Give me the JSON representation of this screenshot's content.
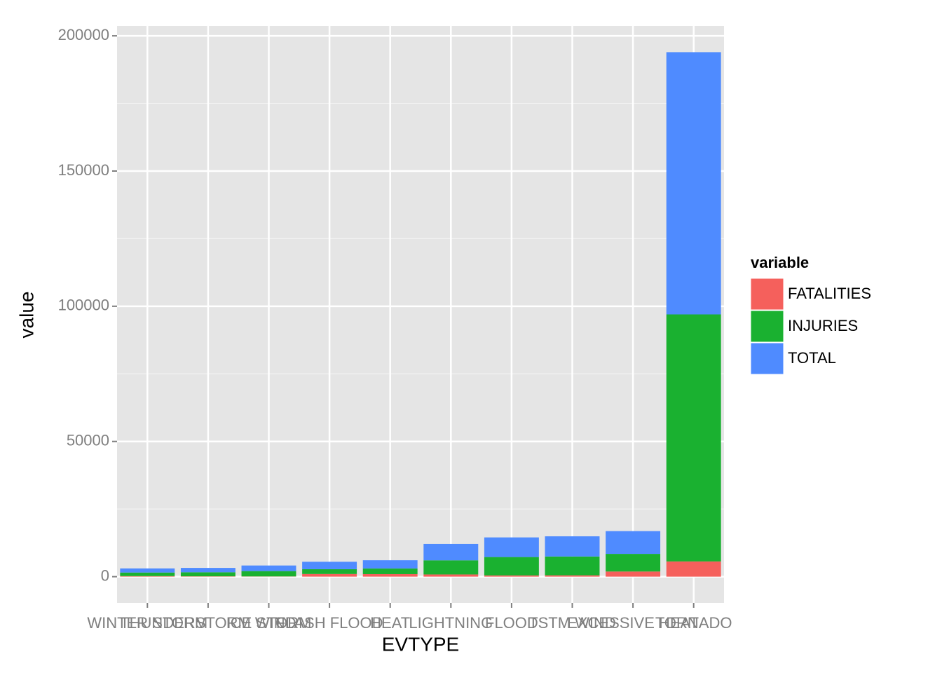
{
  "chart_data": {
    "type": "bar",
    "stacked": true,
    "x_label": "EVTYPE",
    "y_label": "value",
    "legend_title": "variable",
    "categories": [
      "WINTER STORM",
      "THUNDERSTORM WIND",
      "ICE STORM",
      "FLASH FLOOD",
      "HEAT",
      "LIGHTNING",
      "FLOOD",
      "TSTM WIND",
      "EXCESSIVE HEAT",
      "TORNADO"
    ],
    "series": [
      {
        "name": "FATALITIES",
        "color": "#f5605c",
        "values": [
          206,
          133,
          89,
          978,
          937,
          816,
          470,
          504,
          1903,
          5633
        ]
      },
      {
        "name": "INJURIES",
        "color": "#1ab130",
        "values": [
          1321,
          1488,
          1975,
          1777,
          2100,
          5230,
          6789,
          6957,
          6525,
          91346
        ]
      },
      {
        "name": "TOTAL",
        "color": "#4f8bff",
        "values": [
          1527,
          1621,
          2064,
          2755,
          3037,
          6046,
          7259,
          7461,
          8428,
          96979
        ]
      }
    ],
    "ylim": [
      -9698,
      203656
    ],
    "yticks": [
      0,
      50000,
      100000,
      150000,
      200000
    ],
    "grid": true
  }
}
